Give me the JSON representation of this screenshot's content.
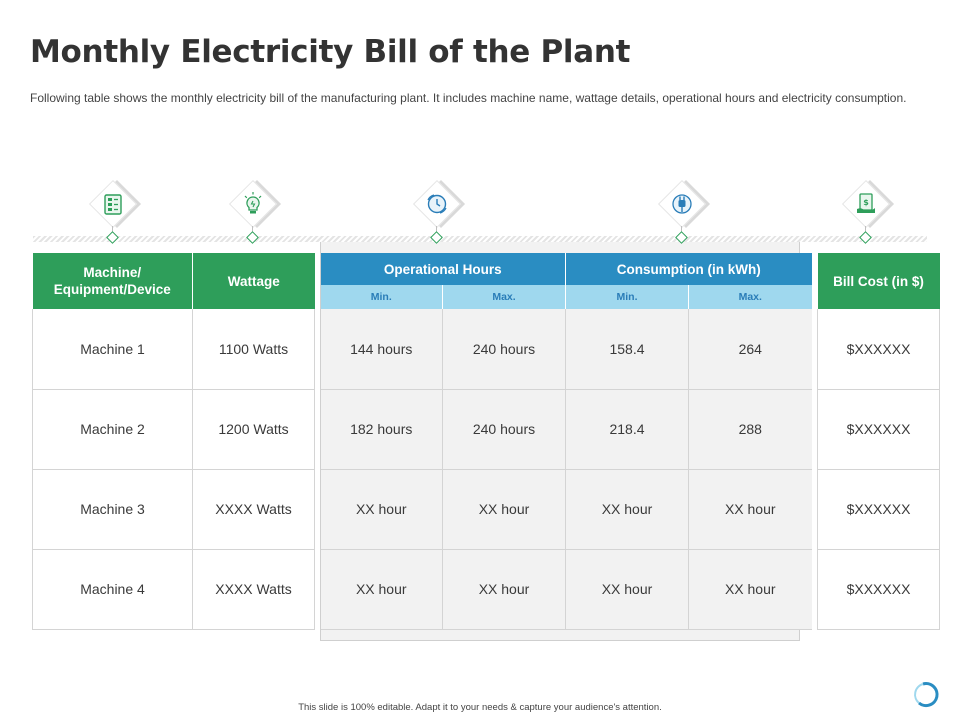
{
  "title": "Monthly Electricity Bill of the Plant",
  "subtitle": "Following table shows the monthly electricity bill of the manufacturing plant. It includes machine name, wattage details, operational hours and electricity consumption.",
  "icons": [
    "machine-panel-icon",
    "light-bulb-icon",
    "clock-cycle-icon",
    "power-plug-icon",
    "bill-dollar-icon"
  ],
  "colors": {
    "green": "#2e9e5a",
    "blue": "#2a8dc2",
    "light_blue": "#9fd8ee",
    "middle_bg": "#f2f2f2"
  },
  "headers": {
    "machine": "Machine/ Equipment/Device",
    "wattage": "Wattage",
    "operational_hours": "Operational Hours",
    "consumption": "Consumption  (in kWh)",
    "bill_cost": "Bill Cost (in $)",
    "min": "Min.",
    "max": "Max."
  },
  "rows": [
    {
      "machine": "Machine 1",
      "wattage": "1100 Watts",
      "hours_min": "144 hours",
      "hours_max": "240 hours",
      "kwh_min": "158.4",
      "kwh_max": "264",
      "bill": "$XXXXXX"
    },
    {
      "machine": "Machine 2",
      "wattage": "1200 Watts",
      "hours_min": "182 hours",
      "hours_max": "240 hours",
      "kwh_min": "218.4",
      "kwh_max": "288",
      "bill": "$XXXXXX"
    },
    {
      "machine": "Machine 3",
      "wattage": "XXXX  Watts",
      "hours_min": "XX hour",
      "hours_max": "XX hour",
      "kwh_min": "XX hour",
      "kwh_max": "XX hour",
      "bill": "$XXXXXX"
    },
    {
      "machine": "Machine 4",
      "wattage": "XXXX  Watts",
      "hours_min": "XX hour",
      "hours_max": "XX hour",
      "kwh_min": "XX hour",
      "kwh_max": "XX hour",
      "bill": "$XXXXXX"
    }
  ],
  "footer": "This slide is 100% editable. Adapt it to your needs & capture your audience's attention."
}
